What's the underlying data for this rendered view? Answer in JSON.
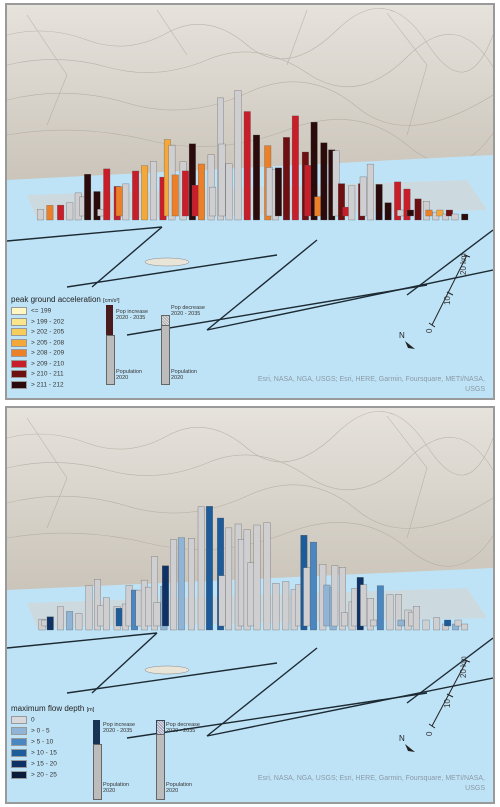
{
  "top_panel": {
    "legend_title": "peak ground acceleration",
    "legend_unit": "[cm/s²]",
    "classes": [
      {
        "label": "<= 199",
        "color": "#fff7c2"
      },
      {
        "label": "> 199 - 202",
        "color": "#fbe58a"
      },
      {
        "label": "> 202 - 205",
        "color": "#f6cd5a"
      },
      {
        "label": "> 205 - 208",
        "color": "#f4a83a"
      },
      {
        "label": "> 208 - 209",
        "color": "#eb8029"
      },
      {
        "label": "> 209 - 210",
        "color": "#c81e2a"
      },
      {
        "label": "> 210 - 211",
        "color": "#6e1012"
      },
      {
        "label": "> 211 - 212",
        "color": "#2a0a0a"
      }
    ],
    "pop_increase_l1": "Pop increase",
    "pop_increase_l2": "2020 - 2035",
    "pop_decrease_l1": "Pop decrease",
    "pop_decrease_l2": "2020 - 2035",
    "population_l1": "Population",
    "population_l2": "2020",
    "population2_l1": "Population",
    "population2_l2": "2020",
    "attribution_l1": "Esri, NASA, NGA, USGS; Esri, HERE, Garmin, Foursquare, METI/NASA,",
    "attribution_l2": "USGS",
    "scale_20": "20 km",
    "scale_10": "10",
    "scale_0": "0",
    "north": "N"
  },
  "bottom_panel": {
    "legend_title": "maximum flow depth",
    "legend_unit": "[m]",
    "classes": [
      {
        "label": "0",
        "color": "#d8d8dc"
      },
      {
        "label": "> 0 - 5",
        "color": "#8fb4d6"
      },
      {
        "label": "> 5 - 10",
        "color": "#4a86bf"
      },
      {
        "label": "> 10 - 15",
        "color": "#1d5c9a"
      },
      {
        "label": "> 15 - 20",
        "color": "#0e3266"
      },
      {
        "label": "> 20 - 25",
        "color": "#0a1a3a"
      }
    ],
    "pop_increase_l1": "Pop increase",
    "pop_increase_l2": "2020 - 2035",
    "pop_decrease_l1": "Pop decrease",
    "pop_decrease_l2": "2020 - 2035",
    "population_l1": "Population",
    "population_l2": "2020",
    "population2_l1": "Population",
    "population2_l2": "2020",
    "attribution_l1": "Esri, NASA, NGA, USGS; Esri, HERE, Garmin, Foursquare, METI/NASA,",
    "attribution_l2": "USGS",
    "scale_20": "20 km",
    "scale_10": "10",
    "scale_0": "0",
    "north": "N"
  }
}
